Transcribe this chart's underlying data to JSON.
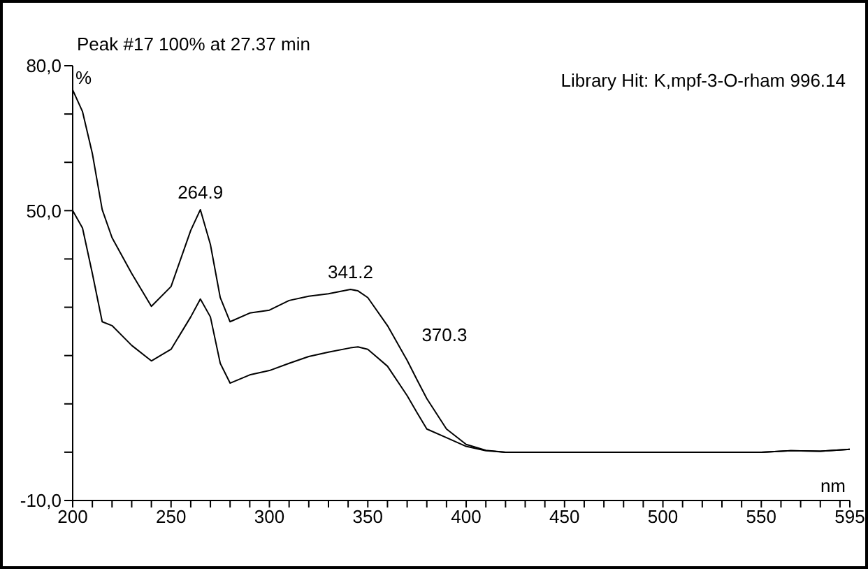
{
  "chart_data": {
    "type": "line",
    "title": "Peak #17   100% at 27.37 min",
    "xlabel": "nm",
    "ylabel": "%",
    "x": [
      200,
      205,
      210,
      215,
      220,
      230,
      240,
      250,
      260,
      264.9,
      270,
      275,
      280,
      290,
      300,
      310,
      320,
      330,
      341.2,
      345,
      350,
      360,
      370,
      375,
      380,
      390,
      400,
      410,
      420,
      450,
      500,
      550,
      565,
      580,
      595
    ],
    "series": [
      {
        "color": "#000000",
        "values": [
          75,
          70.5,
          61.8,
          50.2,
          44.4,
          37,
          30.2,
          34.3,
          45.9,
          50.2,
          43,
          32,
          27,
          28.8,
          29.4,
          31.4,
          32.3,
          32.8,
          33.7,
          33.4,
          32,
          26.2,
          19,
          15,
          11.1,
          4.8,
          1.6,
          0.4,
          0,
          0,
          0,
          0,
          0.3,
          0.2,
          0.6
        ]
      },
      {
        "color": "#000000",
        "values": [
          50,
          46.4,
          37,
          27,
          26.2,
          22.1,
          18.9,
          21.3,
          28,
          31.7,
          28,
          18.4,
          14.3,
          16,
          16.9,
          18.4,
          19.8,
          20.7,
          21.6,
          21.8,
          21.3,
          17.8,
          11.7,
          8.2,
          4.8,
          3,
          1.2,
          0.3,
          0,
          0,
          0,
          0,
          0.3,
          0.2,
          0.6
        ]
      }
    ],
    "xlim": [
      200,
      595
    ],
    "xticks": [
      200,
      {
        "value": 210,
        "label": null
      },
      {
        "value": 220,
        "label": null
      },
      {
        "value": 230,
        "label": null
      },
      {
        "value": 240,
        "label": null
      },
      250,
      {
        "value": 260,
        "label": null
      },
      {
        "value": 270,
        "label": null
      },
      {
        "value": 280,
        "label": null
      },
      {
        "value": 290,
        "label": null
      },
      300,
      {
        "value": 310,
        "label": null
      },
      {
        "value": 320,
        "label": null
      },
      {
        "value": 330,
        "label": null
      },
      {
        "value": 340,
        "label": null
      },
      350,
      {
        "value": 360,
        "label": null
      },
      {
        "value": 370,
        "label": null
      },
      {
        "value": 380,
        "label": null
      },
      {
        "value": 390,
        "label": null
      },
      400,
      {
        "value": 410,
        "label": null
      },
      {
        "value": 420,
        "label": null
      },
      {
        "value": 430,
        "label": null
      },
      {
        "value": 440,
        "label": null
      },
      450,
      {
        "value": 460,
        "label": null
      },
      {
        "value": 470,
        "label": null
      },
      {
        "value": 480,
        "label": null
      },
      {
        "value": 490,
        "label": null
      },
      500,
      {
        "value": 510,
        "label": null
      },
      {
        "value": 520,
        "label": null
      },
      {
        "value": 530,
        "label": null
      },
      {
        "value": 540,
        "label": null
      },
      550,
      {
        "value": 560,
        "label": null
      },
      {
        "value": 570,
        "label": null
      },
      {
        "value": 580,
        "label": null
      },
      {
        "value": 590,
        "label": null
      },
      595
    ],
    "ylim": [
      -10,
      80
    ],
    "yticks": [
      {
        "value": -10,
        "label": "-10,0"
      },
      {
        "value": 0,
        "label": null
      },
      {
        "value": 10,
        "label": null
      },
      {
        "value": 20,
        "label": null
      },
      {
        "value": 30,
        "label": null
      },
      {
        "value": 40,
        "label": null
      },
      {
        "value": 50,
        "label": "50,0"
      },
      {
        "value": 60,
        "label": null
      },
      {
        "value": 70,
        "label": null
      },
      {
        "value": 80,
        "label": "80,0"
      }
    ],
    "grid": false,
    "marker": "none",
    "line_style": "solid",
    "annotations": [
      {
        "text": "264.9",
        "x": 264.9,
        "y": 50.2
      },
      {
        "text": "341.2",
        "x": 341.2,
        "y": 33.7
      },
      {
        "text": "370.3",
        "x": 370.3,
        "y": 19
      },
      "Library Hit: K,mpf-3-O-rham 996.14"
    ]
  }
}
